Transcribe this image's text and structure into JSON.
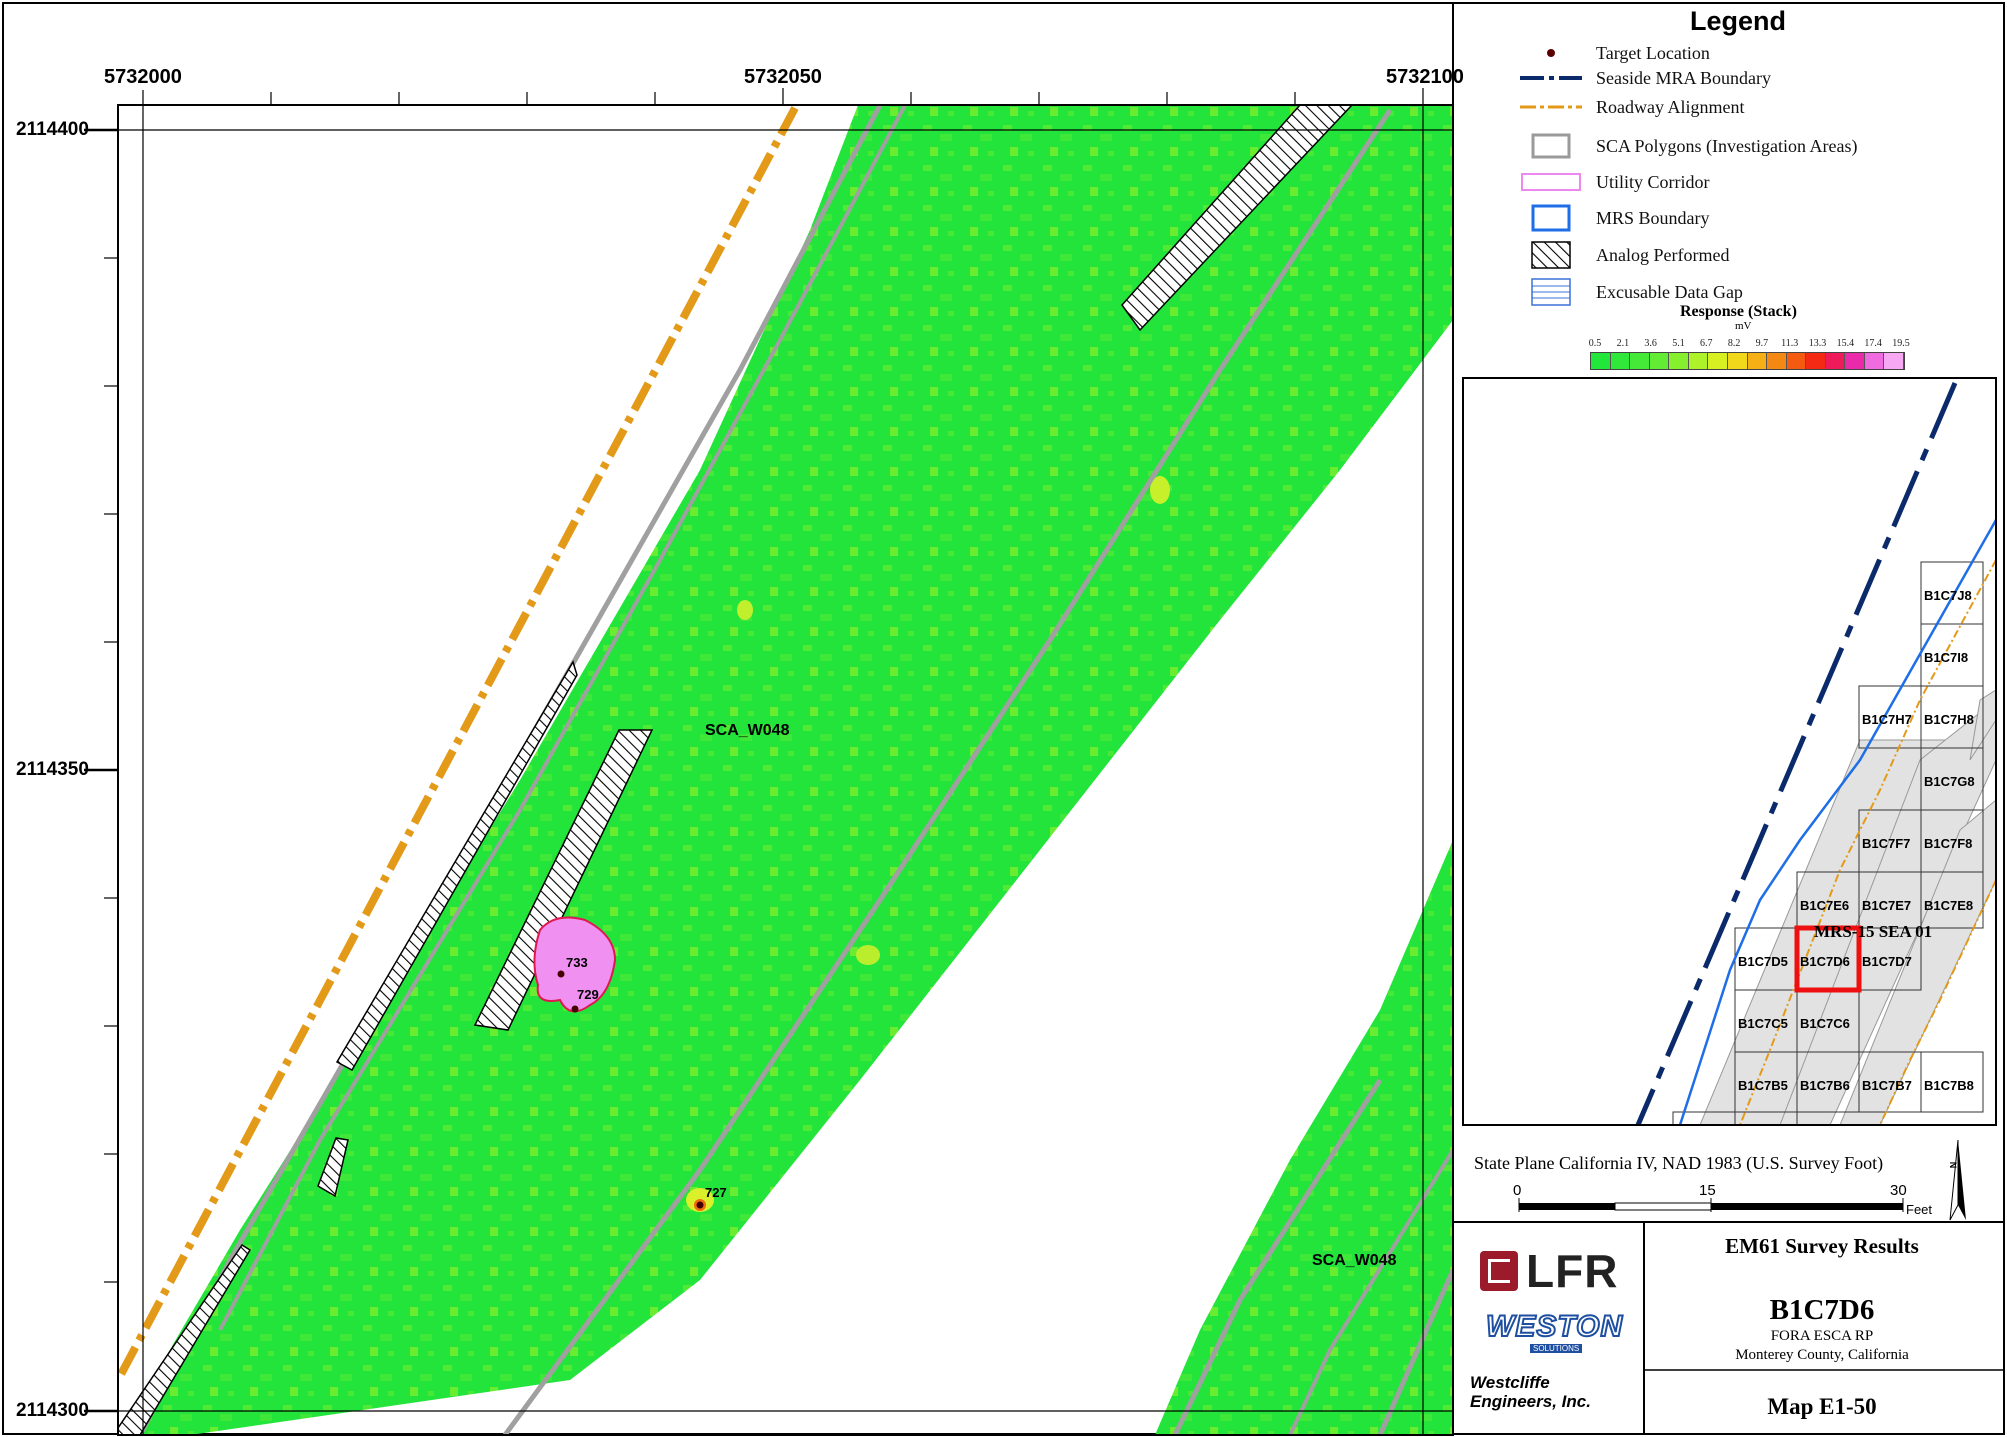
{
  "map": {
    "x_ticks": [
      "5732000",
      "5732050",
      "5732100"
    ],
    "y_ticks": [
      "2114400",
      "2114350",
      "2114300"
    ],
    "area_labels": [
      "SCA_W048",
      "SCA_W048"
    ],
    "targets": [
      "733",
      "729",
      "727"
    ]
  },
  "legend": {
    "title": "Legend",
    "items": [
      {
        "label": "Target Location",
        "icon": "target-dot-icon"
      },
      {
        "label": "Seaside MRA Boundary",
        "icon": "dash-dot-line-icon",
        "color": "#0b2a6b"
      },
      {
        "label": "Roadway Alignment",
        "icon": "dash-dot-line-icon",
        "color": "#e0a020"
      },
      {
        "label": "SCA Polygons (Investigation Areas)",
        "icon": "gray-box-icon",
        "color": "#9a9a9a"
      },
      {
        "label": "Utility Corridor",
        "icon": "pink-box-icon",
        "color": "#ee88ee"
      },
      {
        "label": "MRS Boundary",
        "icon": "blue-box-icon",
        "color": "#1e6ee8"
      },
      {
        "label": "Analog Performed",
        "icon": "hatch-icon"
      },
      {
        "label": "Excusable Data Gap",
        "icon": "blue-lines-icon",
        "color": "#3a70d8"
      }
    ],
    "response": {
      "title": "Response (Stack)",
      "unit": "mV",
      "ticks": [
        "0.5",
        "2.1",
        "3.6",
        "5.1",
        "6.7",
        "8.2",
        "9.7",
        "11.3",
        "13.3",
        "15.4",
        "17.4",
        "19.5"
      ],
      "colors": [
        "#22e63a",
        "#2fe83a",
        "#45ea38",
        "#62ec34",
        "#86ef2e",
        "#aef229",
        "#d6f022",
        "#f2d81a",
        "#f6b015",
        "#f58812",
        "#f45a10",
        "#f42a14",
        "#ee1a5a",
        "#ea2aaa",
        "#f06ae0",
        "#f6a8f2"
      ]
    }
  },
  "inset": {
    "label_mrs": "MRS-15 SEA 01",
    "cells": [
      "B1C7J8",
      "B1C7I8",
      "B1C7H7",
      "B1C7H8",
      "B1C7G8",
      "B1C7F7",
      "B1C7F8",
      "B1C7E6",
      "B1C7E7",
      "B1C7E8",
      "B1C7D5",
      "B1C7D6",
      "B1C7D7",
      "B1C7C5",
      "B1C7C6",
      "B1C7B5",
      "B1C7B6",
      "B1C7B7",
      "B1C7B8"
    ]
  },
  "projection": "State Plane California IV, NAD 1983 (U.S. Survey Foot)",
  "scale": {
    "ticks": [
      "0",
      "15",
      "30"
    ],
    "unit": "Feet"
  },
  "north": "N",
  "title_block": {
    "heading": "EM61 Survey Results",
    "grid": "B1C7D6",
    "project": "FORA ESCA RP",
    "county": "Monterey County, California",
    "map_no": "Map E1-50"
  },
  "logos": {
    "lfr": "LFR",
    "weston": "WESTON",
    "weston_sub": "SOLUTIONS",
    "westcliffe": "Westcliffe\nEngineers, Inc."
  }
}
